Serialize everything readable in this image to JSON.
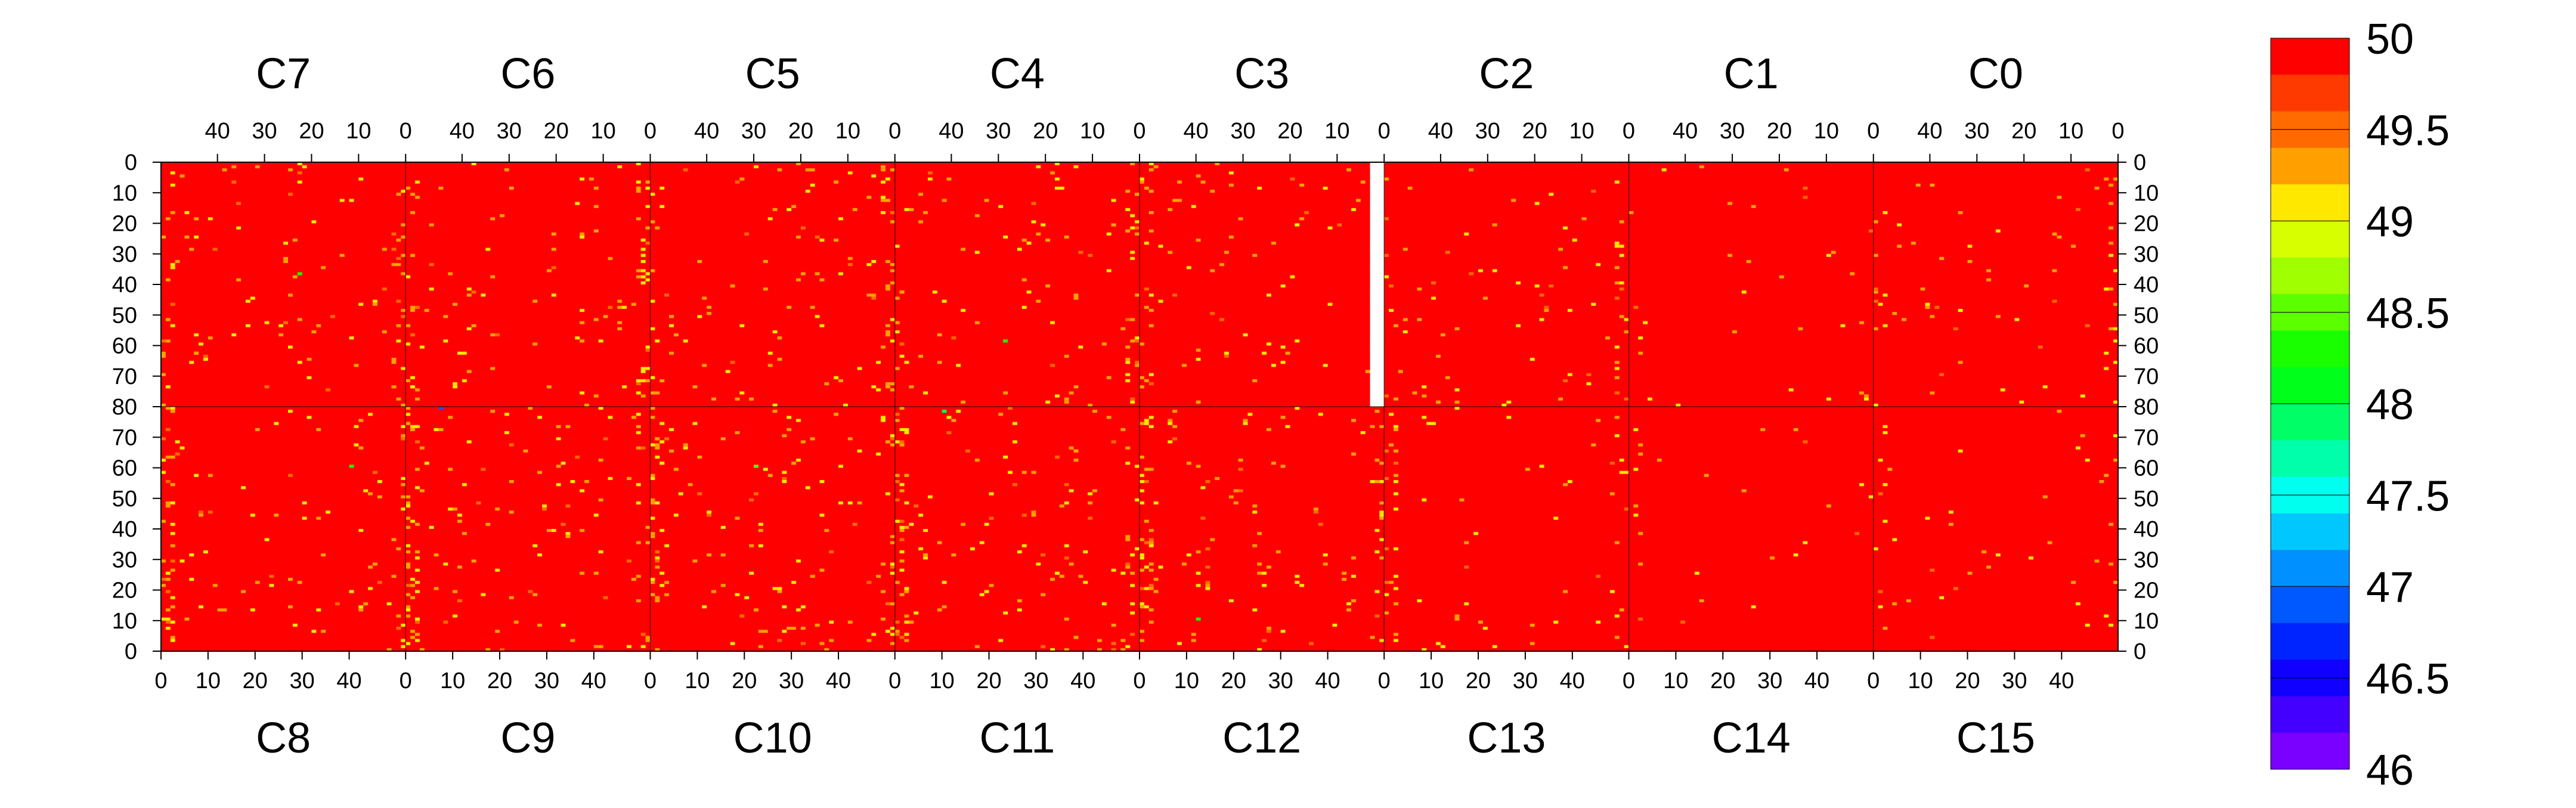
{
  "chart_data": {
    "type": "heatmap",
    "title": "",
    "xlabel": "",
    "ylabel": "",
    "top_chips": [
      "C7",
      "C6",
      "C5",
      "C4",
      "C3",
      "C2",
      "C1",
      "C0"
    ],
    "bottom_chips": [
      "C8",
      "C9",
      "C10",
      "C11",
      "C12",
      "C13",
      "C14",
      "C15"
    ],
    "columns_per_chip": 52,
    "rows_per_half": 80,
    "x_ticks": [
      0,
      10,
      20,
      30,
      40
    ],
    "x_tick_labels": [
      "0",
      "10",
      "20",
      "30",
      "40"
    ],
    "y_ticks": [
      0,
      10,
      20,
      30,
      40,
      50,
      60,
      70,
      80
    ],
    "y_tick_labels_top": [
      "0",
      "10",
      "20",
      "30",
      "40",
      "50",
      "60",
      "70",
      "80"
    ],
    "y_tick_labels_bottom": [
      "70",
      "60",
      "50",
      "40",
      "30",
      "20",
      "10",
      "0"
    ],
    "zlim": [
      46,
      50
    ],
    "dominant_value": 50,
    "colorbar": {
      "labels": [
        "50",
        "49.5",
        "49",
        "48.5",
        "48",
        "47.5",
        "47",
        "46.5",
        "46"
      ],
      "values": [
        50,
        49.5,
        49,
        48.5,
        48,
        47.5,
        47,
        46.5,
        46
      ],
      "bands": [
        "#ff0000",
        "#ff3a00",
        "#ff6a00",
        "#ffa000",
        "#ffe800",
        "#d8ff00",
        "#a0ff00",
        "#5cff00",
        "#1aff00",
        "#00ff1a",
        "#00ff66",
        "#00ffaa",
        "#00ffee",
        "#00c8ff",
        "#0090ff",
        "#0058ff",
        "#0024ff",
        "#1000ff",
        "#4400ff",
        "#7a00ff"
      ]
    },
    "blank_region": {
      "chip": "C3",
      "columns": [
        0,
        2
      ],
      "rows": [
        0,
        80
      ]
    },
    "outlier_pixels": [
      {
        "chip": "C0",
        "col": 0,
        "row": 5,
        "value": 49.2
      },
      {
        "chip": "C0",
        "col": 12,
        "row": 24,
        "value": 49.3
      },
      {
        "chip": "C0",
        "col": 33,
        "row": 48,
        "value": 49.0
      },
      {
        "chip": "C1",
        "col": 30,
        "row": 30,
        "value": 49.2
      },
      {
        "chip": "C2",
        "col": 24,
        "row": 12,
        "value": 49.3
      },
      {
        "chip": "C2",
        "col": 47,
        "row": 55,
        "value": 49.1
      },
      {
        "chip": "C3",
        "col": 18,
        "row": 20,
        "value": 49.0
      },
      {
        "chip": "C4",
        "col": 28,
        "row": 58,
        "value": 48.3
      },
      {
        "chip": "C5",
        "col": 20,
        "row": 24,
        "value": 49.2
      },
      {
        "chip": "C6",
        "col": 0,
        "row": 8,
        "value": 49.0
      },
      {
        "chip": "C7",
        "col": 22,
        "row": 36,
        "value": 48.4
      },
      {
        "chip": "C7",
        "col": 44,
        "row": 62,
        "value": 49.3
      },
      {
        "chip": "C8",
        "col": 40,
        "row": 60,
        "value": 48.2
      },
      {
        "chip": "C9",
        "col": 7,
        "row": 79,
        "value": 47.0
      },
      {
        "chip": "C10",
        "col": 22,
        "row": 60,
        "value": 48.5
      },
      {
        "chip": "C11",
        "col": 10,
        "row": 78,
        "value": 48.0
      },
      {
        "chip": "C12",
        "col": 12,
        "row": 10,
        "value": 48.4
      },
      {
        "chip": "C13",
        "col": 15,
        "row": 79,
        "value": 49.1
      },
      {
        "chip": "C14",
        "col": 30,
        "row": 30,
        "value": 49.3
      },
      {
        "chip": "C15",
        "col": 20,
        "row": 25,
        "value": 49.2
      }
    ]
  }
}
